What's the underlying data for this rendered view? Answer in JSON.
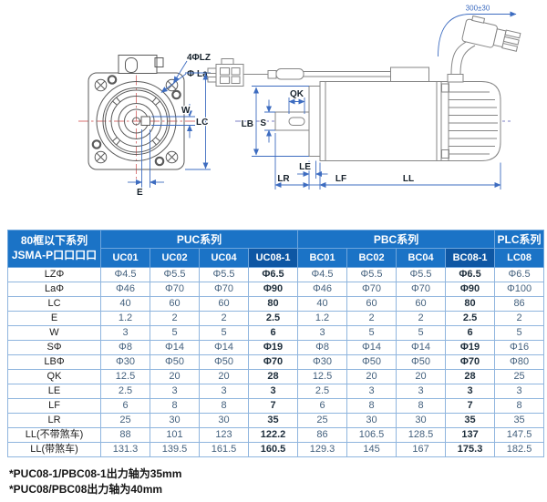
{
  "colors": {
    "header_blue": "#1b73c6",
    "header_blue_dark": "#0e57a4",
    "header_edge": "#6fa6dd",
    "grid_blue": "#8fb5de",
    "data_text": "#44617e",
    "dim_blue": "#3d6cc0",
    "centerline_red": "#d97070",
    "axis_blue": "#7b7fc4"
  },
  "diagram": {
    "front": {
      "label_holes": "4ΦLZ",
      "label_pilot": "Φ La",
      "label_key_width": "W",
      "label_flange": "LC",
      "label_key_offset": "E"
    },
    "side": {
      "label_key_length": "QK",
      "label_pilot_dia": "LB",
      "label_shaft_dia": "S",
      "label_le": "LE",
      "label_lr": "LR",
      "label_lf": "LF",
      "label_ll": "LL",
      "cable_length": "300±30"
    }
  },
  "table": {
    "corner": {
      "line1": "80框以下系列",
      "line2": "JSMA-P口口口口"
    },
    "groups": [
      {
        "label": "PUC系列",
        "span": 4
      },
      {
        "label": "PBC系列",
        "span": 4
      },
      {
        "label": "PLC系列",
        "span": 1
      }
    ],
    "columns": [
      "UC01",
      "UC02",
      "UC04",
      "UC08-1",
      "BC01",
      "BC02",
      "BC04",
      "BC08-1",
      "LC08"
    ],
    "highlight_columns": [
      3,
      7
    ],
    "rows": [
      {
        "label": "LZΦ",
        "values": [
          "Φ4.5",
          "Φ5.5",
          "Φ5.5",
          "Φ6.5",
          "Φ4.5",
          "Φ5.5",
          "Φ5.5",
          "Φ6.5",
          "Φ6.5"
        ]
      },
      {
        "label": "LaΦ",
        "values": [
          "Φ46",
          "Φ70",
          "Φ70",
          "Φ90",
          "Φ46",
          "Φ70",
          "Φ70",
          "Φ90",
          "Φ100"
        ]
      },
      {
        "label": "LC",
        "values": [
          "40",
          "60",
          "60",
          "80",
          "40",
          "60",
          "60",
          "80",
          "86"
        ]
      },
      {
        "label": "E",
        "values": [
          "1.2",
          "2",
          "2",
          "2.5",
          "1.2",
          "2",
          "2",
          "2.5",
          "2"
        ]
      },
      {
        "label": "W",
        "values": [
          "3",
          "5",
          "5",
          "6",
          "3",
          "5",
          "5",
          "6",
          "5"
        ]
      },
      {
        "label": "SΦ",
        "values": [
          "Φ8",
          "Φ14",
          "Φ14",
          "Φ19",
          "Φ8",
          "Φ14",
          "Φ14",
          "Φ19",
          "Φ16"
        ]
      },
      {
        "label": "LBΦ",
        "values": [
          "Φ30",
          "Φ50",
          "Φ50",
          "Φ70",
          "Φ30",
          "Φ50",
          "Φ50",
          "Φ70",
          "Φ80"
        ]
      },
      {
        "label": "QK",
        "values": [
          "12.5",
          "20",
          "20",
          "28",
          "12.5",
          "20",
          "20",
          "28",
          "25"
        ]
      },
      {
        "label": "LE",
        "values": [
          "2.5",
          "3",
          "3",
          "3",
          "2.5",
          "3",
          "3",
          "3",
          "3"
        ]
      },
      {
        "label": "LF",
        "values": [
          "6",
          "8",
          "8",
          "7",
          "6",
          "8",
          "8",
          "7",
          "8"
        ]
      },
      {
        "label": "LR",
        "values": [
          "25",
          "30",
          "30",
          "35",
          "25",
          "30",
          "30",
          "35",
          "35"
        ]
      },
      {
        "label": "LL(不带煞车)",
        "values": [
          "88",
          "101",
          "123",
          "122.2",
          "86",
          "106.5",
          "128.5",
          "137",
          "147.5"
        ]
      },
      {
        "label": "LL(带煞车)",
        "values": [
          "131.3",
          "139.5",
          "161.5",
          "160.5",
          "129.3",
          "145",
          "167",
          "175.3",
          "182.5"
        ]
      }
    ]
  },
  "footnotes": [
    "*PUC08-1/PBC08-1出力轴为35mm",
    "*PUC08/PBC08出力轴为40mm"
  ]
}
